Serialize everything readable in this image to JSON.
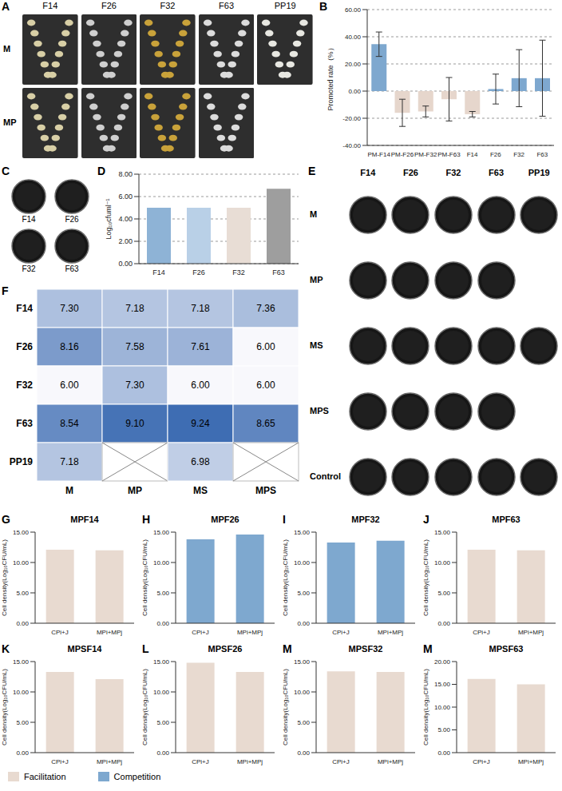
{
  "chart_data": [
    {
      "panel": "A",
      "type": "image_grid",
      "columns": [
        "F14",
        "F26",
        "F32",
        "F63",
        "PP19"
      ],
      "rows": [
        "M",
        "MP"
      ],
      "cells": [
        [
          true,
          true,
          true,
          true,
          true
        ],
        [
          true,
          true,
          true,
          true,
          false
        ]
      ],
      "colors": [
        "#d8cfa6",
        "#cfcfcf",
        "#c9a23a",
        "#dcdcdc",
        "#e8e8e2"
      ]
    },
    {
      "panel": "B",
      "type": "bar",
      "categories": [
        "PM-F14",
        "PM-F26",
        "PM-F32",
        "PM-F63",
        "F14",
        "F26",
        "F32",
        "F63"
      ],
      "values": [
        34.5,
        -16,
        -15,
        -6,
        -17,
        1.5,
        9.5,
        9.5
      ],
      "errors": [
        9,
        10,
        4,
        16,
        2,
        11,
        21,
        28
      ],
      "colors": [
        "#7ea8cf",
        "#e6d6cc",
        "#e6d6cc",
        "#e6d6cc",
        "#e6d6cc",
        "#7ea8cf",
        "#7ea8cf",
        "#7ea8cf"
      ],
      "y_label": "Promoted rate（%）",
      "ylim": [
        -40,
        60
      ],
      "yticks": [
        {
          "value": -40,
          "label": "-40.00"
        },
        {
          "value": -20,
          "label": "-20.00"
        },
        {
          "value": 0,
          "label": "0.00"
        },
        {
          "value": 20,
          "label": "20.00"
        },
        {
          "value": 40,
          "label": "40.00"
        },
        {
          "value": 60,
          "label": "60.00"
        }
      ],
      "grid": true
    },
    {
      "panel": "C",
      "type": "image_grid",
      "columns": [
        "F14",
        "F26",
        "F32",
        "F63"
      ]
    },
    {
      "panel": "D",
      "type": "bar",
      "categories": [
        "F14",
        "F26",
        "F32",
        "F63"
      ],
      "values": [
        5,
        5,
        5,
        6.7
      ],
      "colors": [
        "#8eb3d6",
        "#b9d0e7",
        "#e8ddd5",
        "#9e9e9e"
      ],
      "y_label": "Log₁₀cfuml⁻¹",
      "ylim": [
        0,
        8
      ],
      "yticks": [
        {
          "value": 0,
          "label": "0.00"
        },
        {
          "value": 2,
          "label": "2.00"
        },
        {
          "value": 4,
          "label": "4.00"
        },
        {
          "value": 6,
          "label": "6.00"
        },
        {
          "value": 8,
          "label": "8.00"
        }
      ],
      "grid": true
    },
    {
      "panel": "E",
      "type": "image_grid",
      "columns": [
        "F14",
        "F26",
        "F32",
        "F63",
        "PP19"
      ],
      "rows": [
        "M",
        "MP",
        "MS",
        "MPS",
        "Control"
      ],
      "cells": [
        [
          true,
          true,
          true,
          true,
          true
        ],
        [
          true,
          true,
          true,
          true,
          false
        ],
        [
          true,
          true,
          true,
          true,
          true
        ],
        [
          true,
          true,
          true,
          true,
          false
        ],
        [
          true,
          true,
          true,
          true,
          true
        ]
      ]
    },
    {
      "panel": "F",
      "type": "heatmap",
      "rows": [
        "F14",
        "F26",
        "F32",
        "F63",
        "PP19"
      ],
      "columns": [
        "M",
        "MP",
        "MS",
        "MPS"
      ],
      "cells": [
        [
          7.3,
          7.18,
          7.18,
          7.36
        ],
        [
          8.16,
          7.58,
          7.61,
          6.0
        ],
        [
          6.0,
          7.3,
          6.0,
          6.0
        ],
        [
          8.54,
          9.1,
          9.24,
          8.65
        ],
        [
          7.18,
          null,
          6.98,
          null
        ]
      ],
      "cell_labels": [
        [
          "7.30",
          "7.18",
          "7.18",
          "7.36"
        ],
        [
          "8.16",
          "7.58",
          "7.61",
          "6.00"
        ],
        [
          "6.00",
          "7.30",
          "6.00",
          "6.00"
        ],
        [
          "8.54",
          "9.10",
          "9.24",
          "8.65"
        ],
        [
          "7.18",
          null,
          "6.98",
          null
        ]
      ]
    },
    {
      "panel": "G",
      "type": "bar",
      "title": "MPF14",
      "categories": [
        "CPi+J",
        "MPi+MPj"
      ],
      "series": [
        {
          "name": "Facilitation",
          "color": "#e8dad0",
          "values": [
            12.1,
            12.0
          ]
        }
      ],
      "y_label": "Cell density(Log₁₀CFU/mL)",
      "ylim": [
        0,
        15
      ],
      "yticks": [
        {
          "value": 0,
          "label": "0.00"
        },
        {
          "value": 5,
          "label": "5.00"
        },
        {
          "value": 10,
          "label": "10.00"
        },
        {
          "value": 15,
          "label": "15.00"
        }
      ],
      "legend": "bottom"
    },
    {
      "panel": "H",
      "type": "bar",
      "title": "MPF26",
      "categories": [
        "CPi+J",
        "MPi+MPj"
      ],
      "series": [
        {
          "name": "Competition",
          "color": "#7ea8cf",
          "values": [
            13.8,
            14.6
          ]
        }
      ],
      "y_label": "Cell density(Log₁₀CFU/mL)",
      "ylim": [
        0,
        15
      ],
      "yticks": [
        {
          "value": 0,
          "label": "0.00"
        },
        {
          "value": 5,
          "label": "5.00"
        },
        {
          "value": 10,
          "label": "10.00"
        },
        {
          "value": 15,
          "label": "15.00"
        }
      ],
      "legend": "bottom"
    },
    {
      "panel": "I",
      "type": "bar",
      "title": "MPF32",
      "categories": [
        "CPi+J",
        "MPi+MPj"
      ],
      "series": [
        {
          "name": "Competition",
          "color": "#7ea8cf",
          "values": [
            13.3,
            13.6
          ]
        }
      ],
      "y_label": "Cell density(Log₁₀CFU/mL)",
      "ylim": [
        0,
        15
      ],
      "yticks": [
        {
          "value": 0,
          "label": "0.00"
        },
        {
          "value": 5,
          "label": "5.00"
        },
        {
          "value": 10,
          "label": "10.00"
        },
        {
          "value": 15,
          "label": "15.00"
        }
      ],
      "legend": "bottom"
    },
    {
      "panel": "J",
      "type": "bar",
      "title": "MPF63",
      "categories": [
        "CPi+J",
        "MPi+MPj"
      ],
      "series": [
        {
          "name": "Facilitation",
          "color": "#e8dad0",
          "values": [
            12.1,
            12.0
          ]
        }
      ],
      "y_label": "Cell density(Log₁₀CFU/mL)",
      "ylim": [
        0,
        15
      ],
      "yticks": [
        {
          "value": 0,
          "label": "0.00"
        },
        {
          "value": 5,
          "label": "5.00"
        },
        {
          "value": 10,
          "label": "10.00"
        },
        {
          "value": 15,
          "label": "15.00"
        }
      ],
      "legend": "bottom"
    },
    {
      "panel": "K",
      "type": "bar",
      "title": "MPSF14",
      "categories": [
        "CPi+J",
        "MPi+MPj"
      ],
      "series": [
        {
          "name": "Facilitation",
          "color": "#e8dad0",
          "values": [
            13.3,
            12.1
          ]
        }
      ],
      "y_label": "Cell density(Log₁₀CFU/mL)",
      "ylim": [
        0,
        15
      ],
      "yticks": [
        {
          "value": 0,
          "label": "0.00"
        },
        {
          "value": 5,
          "label": "5.00"
        },
        {
          "value": 10,
          "label": "10.00"
        },
        {
          "value": 15,
          "label": "15.00"
        }
      ],
      "legend": "bottom"
    },
    {
      "panel": "L",
      "type": "bar",
      "title": "MPSF26",
      "categories": [
        "CPi+J",
        "MPi+MPj"
      ],
      "series": [
        {
          "name": "Facilitation",
          "color": "#e8dad0",
          "values": [
            14.8,
            13.3
          ]
        }
      ],
      "y_label": "Cell density(Log₁₀CFU/mL)",
      "ylim": [
        0,
        15
      ],
      "yticks": [
        {
          "value": 0,
          "label": "0.00"
        },
        {
          "value": 5,
          "label": "5.00"
        },
        {
          "value": 10,
          "label": "10.00"
        },
        {
          "value": 15,
          "label": "15.00"
        }
      ],
      "legend": "bottom"
    },
    {
      "panel": "M",
      "type": "bar",
      "title": "MPSF32",
      "categories": [
        "CPi+J",
        "MPi+MPj"
      ],
      "series": [
        {
          "name": "Facilitation",
          "color": "#e8dad0",
          "values": [
            13.4,
            13.3
          ]
        }
      ],
      "y_label": "Cell density(Log₁₀CFU/mL)",
      "ylim": [
        0,
        15
      ],
      "yticks": [
        {
          "value": 0,
          "label": "0.00"
        },
        {
          "value": 5,
          "label": "5.00"
        },
        {
          "value": 10,
          "label": "10.00"
        },
        {
          "value": 15,
          "label": "15.00"
        }
      ],
      "legend": "bottom"
    },
    {
      "panel": "M",
      "type": "bar",
      "title": "MPSF63",
      "categories": [
        "CPi+J",
        "MPi+MPj"
      ],
      "series": [
        {
          "name": "Facilitation",
          "color": "#e8dad0",
          "values": [
            16.2,
            15.0
          ]
        }
      ],
      "y_label": "Cell density(Log₁₀CFU/mL)",
      "ylim": [
        0,
        20
      ],
      "yticks": [
        {
          "value": 0,
          "label": "0.00"
        },
        {
          "value": 5,
          "label": "5.00"
        },
        {
          "value": 10,
          "label": "10.00"
        },
        {
          "value": 15,
          "label": "15.00"
        },
        {
          "value": 20,
          "label": "20.00"
        }
      ],
      "legend": "bottom"
    }
  ]
}
